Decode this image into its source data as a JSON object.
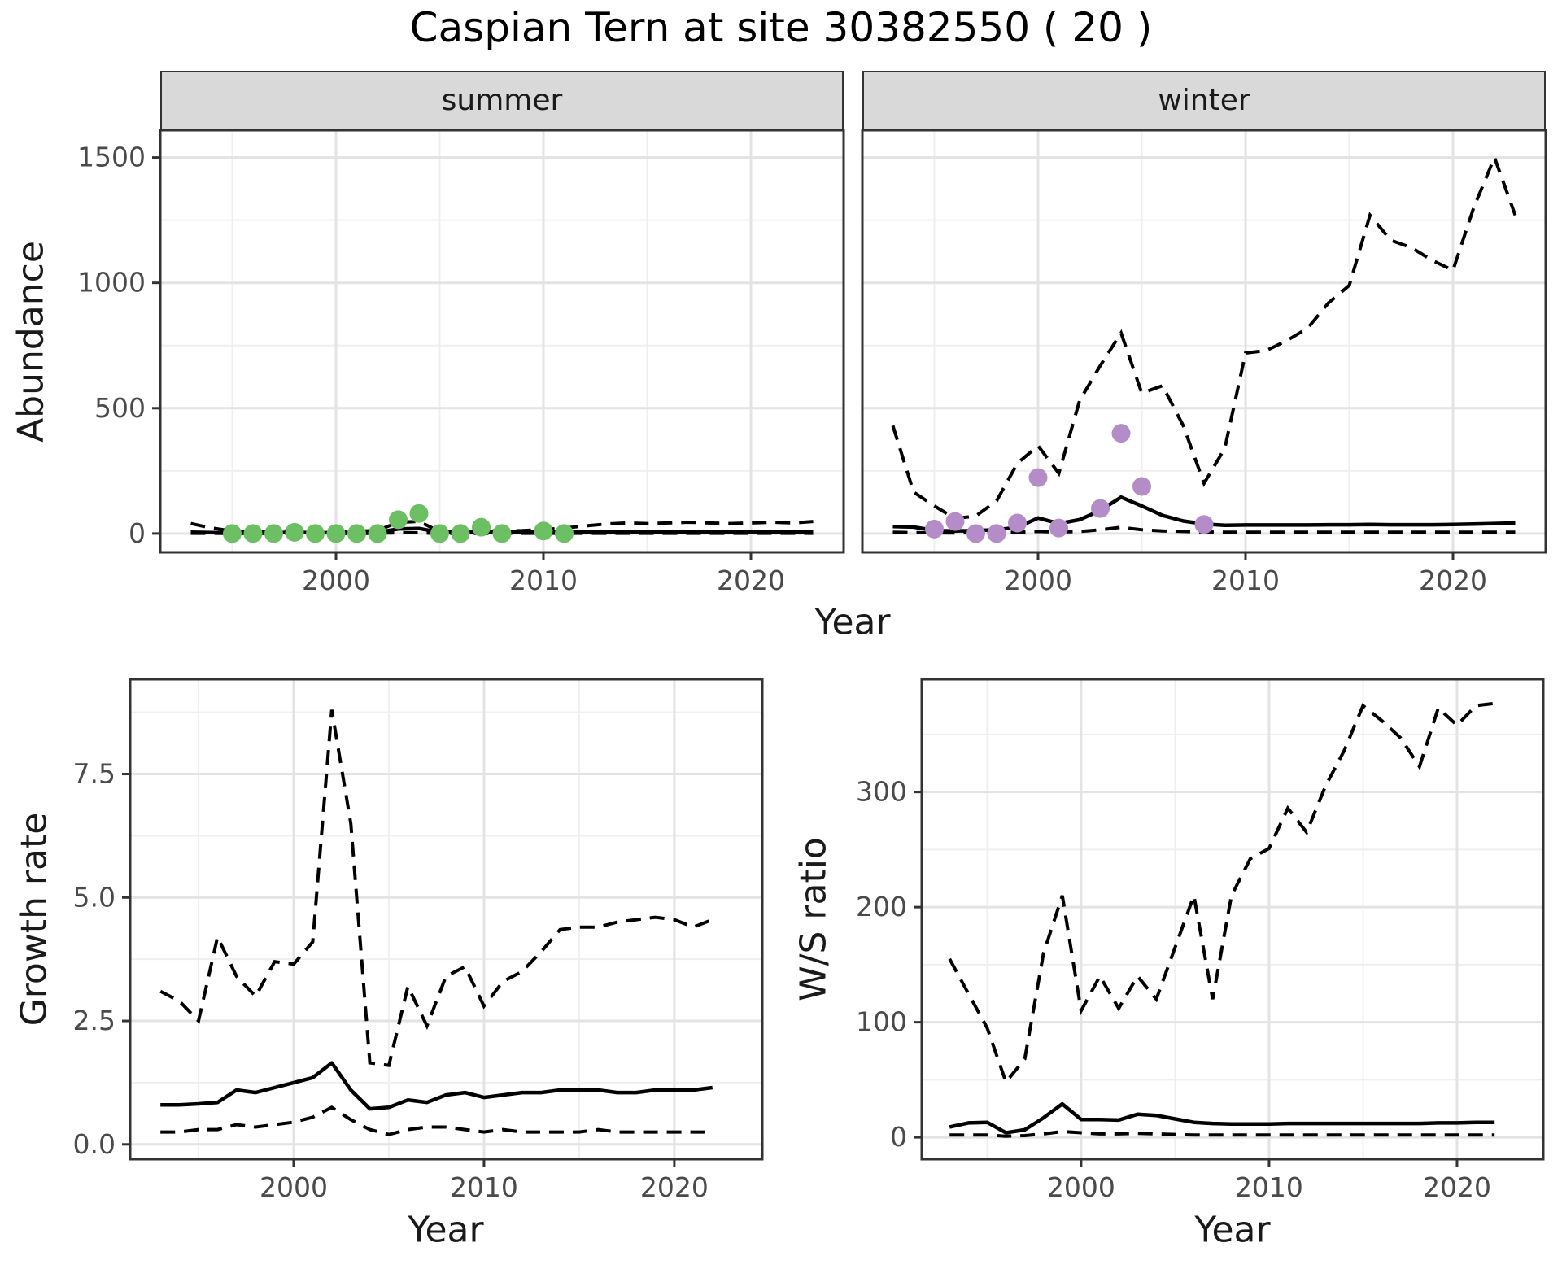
{
  "title": "Caspian Tern at site 30382550 ( 20 )",
  "colors": {
    "median_line": "#000000",
    "ci_line": "#000000",
    "summer_point": "#6dbf63",
    "winter_point": "#b48cc8",
    "grid_major": "#e3e3e3",
    "grid_minor": "#efefef",
    "panel_border": "#333333",
    "tick_mark": "#333333",
    "tick_label": "#4a4a4a",
    "strip_bg": "#d9d9d9"
  },
  "chart_data": [
    {
      "key": "summer",
      "type": "line",
      "facet_label": "summer",
      "xlabel": "Year",
      "ylabel": "Abundance",
      "x_domain": [
        1991.53,
        2024.47
      ],
      "y_domain": [
        -75,
        1609
      ],
      "x_ticks": [
        2000,
        2010,
        2020
      ],
      "x_tick_labels": [
        "2000",
        "2010",
        "2020"
      ],
      "x_minor": [
        1995,
        2005,
        2015
      ],
      "y_ticks": [
        0,
        500,
        1000,
        1500
      ],
      "y_tick_labels": [
        "0",
        "500",
        "1000",
        "1500"
      ],
      "y_minor": [
        250,
        750,
        1250
      ],
      "show_y_tick_labels": true,
      "grid": true,
      "legend": "none",
      "series": {
        "years": [
          1993,
          1994,
          1995,
          1996,
          1997,
          1998,
          1999,
          2000,
          2001,
          2002,
          2003,
          2004,
          2005,
          2006,
          2007,
          2008,
          2009,
          2010,
          2011,
          2012,
          2013,
          2014,
          2015,
          2016,
          2017,
          2018,
          2019,
          2020,
          2021,
          2022,
          2023
        ],
        "upper_ci": [
          40,
          22,
          10,
          8,
          8,
          12,
          8,
          8,
          9,
          12,
          45,
          48,
          8,
          6,
          12,
          10,
          12,
          16,
          22,
          30,
          38,
          42,
          40,
          42,
          45,
          42,
          40,
          42,
          45,
          42,
          48
        ],
        "median": [
          5,
          4,
          3,
          3,
          3,
          5,
          3,
          4,
          4,
          5,
          18,
          20,
          5,
          4,
          6,
          5,
          5,
          6,
          5,
          6,
          6,
          6,
          6,
          6,
          6,
          6,
          6,
          6,
          6,
          6,
          7
        ],
        "lower_ci": [
          1,
          1,
          0,
          0,
          0,
          1,
          0,
          0,
          0,
          1,
          3,
          3,
          0,
          0,
          1,
          1,
          1,
          1,
          1,
          1,
          1,
          1,
          1,
          1,
          1,
          1,
          1,
          1,
          1,
          1,
          1
        ]
      },
      "observations": {
        "years": [
          1995,
          1996,
          1997,
          1998,
          1999,
          2000,
          2001,
          2002,
          2003,
          2004,
          2005,
          2006,
          2007,
          2008,
          2010,
          2011
        ],
        "values": [
          0,
          0,
          0,
          5,
          0,
          0,
          0,
          0,
          55,
          80,
          0,
          0,
          25,
          0,
          10,
          0
        ],
        "color_key": "summer_point"
      }
    },
    {
      "key": "winter",
      "type": "line",
      "facet_label": "winter",
      "xlabel": "Year",
      "ylabel": "Abundance",
      "x_domain": [
        1991.53,
        2024.47
      ],
      "y_domain": [
        -75,
        1609
      ],
      "x_ticks": [
        2000,
        2010,
        2020
      ],
      "x_tick_labels": [
        "2000",
        "2010",
        "2020"
      ],
      "x_minor": [
        1995,
        2005,
        2015
      ],
      "y_ticks": [
        0,
        500,
        1000,
        1500
      ],
      "y_tick_labels": [
        "0",
        "500",
        "1000",
        "1500"
      ],
      "y_minor": [
        250,
        750,
        1250
      ],
      "show_y_tick_labels": false,
      "grid": true,
      "legend": "none",
      "series": {
        "years": [
          1993,
          1994,
          1995,
          1996,
          1997,
          1998,
          1999,
          2000,
          2001,
          2002,
          2003,
          2004,
          2005,
          2006,
          2007,
          2008,
          2009,
          2010,
          2011,
          2012,
          2013,
          2014,
          2015,
          2016,
          2017,
          2018,
          2019,
          2020,
          2021,
          2022,
          2023
        ],
        "upper_ci": [
          430,
          165,
          110,
          60,
          70,
          130,
          280,
          350,
          240,
          530,
          670,
          800,
          560,
          590,
          430,
          200,
          340,
          720,
          730,
          770,
          820,
          920,
          990,
          1270,
          1170,
          1140,
          1090,
          1050,
          1300,
          1500,
          1270
        ],
        "median": [
          28,
          26,
          12,
          10,
          12,
          15,
          25,
          62,
          40,
          55,
          92,
          145,
          110,
          72,
          50,
          38,
          33,
          34,
          34,
          34,
          34,
          35,
          35,
          36,
          35,
          35,
          35,
          36,
          38,
          40,
          42
        ],
        "lower_ci": [
          5,
          4,
          3,
          2,
          3,
          4,
          5,
          8,
          6,
          8,
          15,
          25,
          15,
          10,
          8,
          6,
          5,
          5,
          5,
          5,
          5,
          5,
          5,
          5,
          5,
          5,
          5,
          5,
          5,
          5,
          5
        ]
      },
      "observations": {
        "years": [
          1995,
          1996,
          1997,
          1998,
          1999,
          2000,
          2001,
          2003,
          2004,
          2005,
          2008
        ],
        "values": [
          18,
          48,
          0,
          0,
          42,
          223,
          22,
          100,
          400,
          188,
          36
        ],
        "color_key": "winter_point"
      }
    },
    {
      "key": "growth",
      "type": "line",
      "facet_label": "",
      "xlabel": "Year",
      "ylabel": "Growth rate",
      "x_domain": [
        1991.41,
        2024.62
      ],
      "y_domain": [
        -0.3,
        9.42
      ],
      "x_ticks": [
        2000,
        2010,
        2020
      ],
      "x_tick_labels": [
        "2000",
        "2010",
        "2020"
      ],
      "x_minor": [
        1995,
        2005,
        2015
      ],
      "y_ticks": [
        0.0,
        2.5,
        5.0,
        7.5
      ],
      "y_tick_labels": [
        "0.0",
        "2.5",
        "5.0",
        "7.5"
      ],
      "y_minor": [
        1.25,
        3.75,
        6.25,
        8.75
      ],
      "show_y_tick_labels": true,
      "grid": true,
      "legend": "none",
      "series": {
        "years": [
          1993,
          1994,
          1995,
          1996,
          1997,
          1998,
          1999,
          2000,
          2001,
          2002,
          2003,
          2004,
          2005,
          2006,
          2007,
          2008,
          2009,
          2010,
          2011,
          2012,
          2013,
          2014,
          2015,
          2016,
          2017,
          2018,
          2019,
          2020,
          2021,
          2022
        ],
        "upper_ci": [
          3.1,
          2.9,
          2.5,
          4.2,
          3.4,
          3.0,
          3.7,
          3.65,
          4.1,
          8.8,
          6.5,
          1.65,
          1.6,
          3.2,
          2.4,
          3.4,
          3.6,
          2.8,
          3.3,
          3.5,
          3.9,
          4.35,
          4.4,
          4.4,
          4.5,
          4.55,
          4.6,
          4.55,
          4.4,
          4.55
        ],
        "median": [
          0.8,
          0.8,
          0.82,
          0.85,
          1.1,
          1.05,
          1.15,
          1.25,
          1.35,
          1.65,
          1.1,
          0.72,
          0.75,
          0.9,
          0.85,
          1.0,
          1.05,
          0.95,
          1.0,
          1.05,
          1.05,
          1.1,
          1.1,
          1.1,
          1.05,
          1.05,
          1.1,
          1.1,
          1.1,
          1.15
        ],
        "lower_ci": [
          0.25,
          0.25,
          0.3,
          0.3,
          0.4,
          0.35,
          0.4,
          0.45,
          0.55,
          0.75,
          0.5,
          0.3,
          0.2,
          0.3,
          0.35,
          0.35,
          0.3,
          0.25,
          0.3,
          0.25,
          0.25,
          0.25,
          0.25,
          0.3,
          0.25,
          0.25,
          0.25,
          0.25,
          0.25,
          0.25
        ]
      },
      "observations": null
    },
    {
      "key": "ws",
      "type": "line",
      "facet_label": "",
      "xlabel": "Year",
      "ylabel": "W/S ratio",
      "x_domain": [
        1991.52,
        2024.59
      ],
      "y_domain": [
        -19,
        398
      ],
      "x_ticks": [
        2000,
        2010,
        2020
      ],
      "x_tick_labels": [
        "2000",
        "2010",
        "2020"
      ],
      "x_minor": [
        1995,
        2005,
        2015
      ],
      "y_ticks": [
        0,
        100,
        200,
        300
      ],
      "y_tick_labels": [
        "0",
        "100",
        "200",
        "300"
      ],
      "y_minor": [
        50,
        150,
        250,
        350
      ],
      "show_y_tick_labels": true,
      "grid": true,
      "legend": "none",
      "series": {
        "years": [
          1993,
          1994,
          1995,
          1996,
          1997,
          1998,
          1999,
          2000,
          2001,
          2002,
          2003,
          2004,
          2005,
          2006,
          2007,
          2008,
          2009,
          2010,
          2011,
          2012,
          2013,
          2014,
          2015,
          2016,
          2017,
          2018,
          2019,
          2020,
          2021,
          2022
        ],
        "upper_ci": [
          155,
          125,
          95,
          48,
          68,
          160,
          210,
          110,
          140,
          112,
          140,
          120,
          165,
          210,
          120,
          210,
          242,
          251,
          286,
          265,
          305,
          336,
          375,
          362,
          347,
          322,
          373,
          358,
          375,
          377
        ],
        "median": [
          9,
          12.5,
          13,
          4,
          6.5,
          17,
          29,
          15.5,
          15.5,
          15,
          20,
          19,
          16,
          13,
          12,
          11.5,
          11.5,
          11.5,
          12,
          12,
          12,
          12,
          12,
          12,
          12,
          12,
          12.5,
          12.5,
          13,
          13
        ],
        "lower_ci": [
          2,
          2,
          2,
          1,
          1.5,
          3,
          5,
          4,
          3,
          3,
          3.5,
          3,
          2.5,
          2,
          2,
          2,
          2,
          2,
          2,
          2,
          2,
          2,
          2,
          2,
          2,
          2,
          2,
          2,
          2,
          2
        ]
      },
      "observations": null
    }
  ]
}
